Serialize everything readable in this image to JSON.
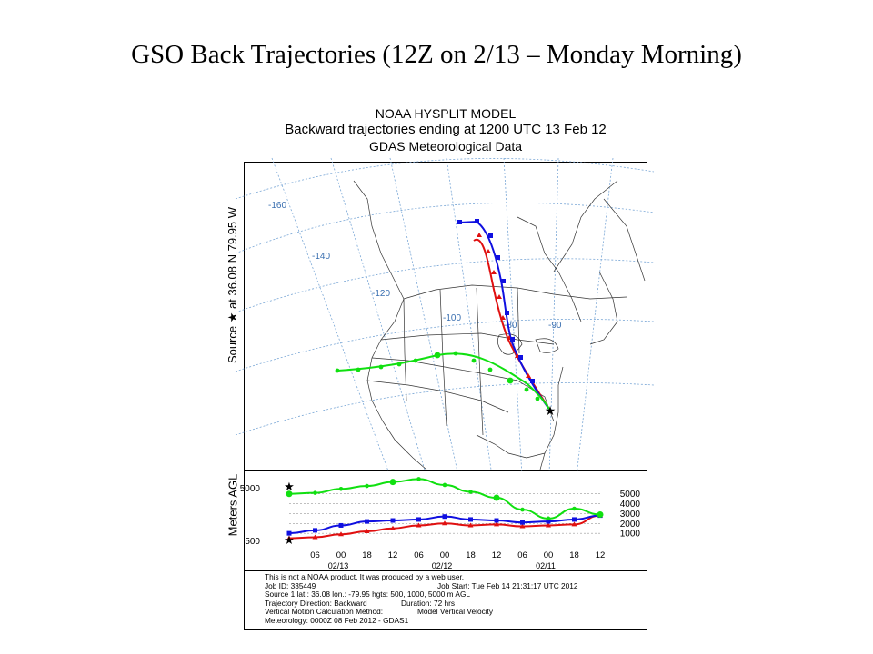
{
  "slide_title": "GSO Back Trajectories  (12Z on 2/13 – Monday Morning)",
  "header": {
    "line1": "NOAA HYSPLIT MODEL",
    "line2": "Backward trajectories ending at 1200 UTC 13 Feb 12",
    "line3": "GDAS Meteorological Data"
  },
  "source_label": "Source ★ at    36.08 N    79.95 W",
  "map": {
    "lon_labels": [
      "-160",
      "-140",
      "-120",
      "-100",
      "-80",
      "-90"
    ],
    "source_marker": "star-icon"
  },
  "colors": {
    "red": "#e01010",
    "blue": "#1010e0",
    "green": "#10e010"
  },
  "chart_data": {
    "type": "line",
    "title": "",
    "ylabel": "Meters AGL",
    "x_tick_labels": [
      "06",
      "00",
      "18",
      "12",
      "06",
      "00",
      "18",
      "12",
      "06",
      "00",
      "18",
      "12"
    ],
    "date_labels": [
      "02/13",
      "02/12",
      "02/11"
    ],
    "right_ticks": [
      "5000",
      "4000",
      "3000",
      "2000",
      "1000"
    ],
    "left_ticks": [
      "5000",
      "500"
    ],
    "x_hours_before_end": [
      0,
      6,
      12,
      18,
      24,
      30,
      36,
      42,
      48,
      54,
      60,
      66,
      72
    ],
    "series": [
      {
        "color": "#e01010",
        "values": [
          500,
          600,
          900,
          1200,
          1500,
          1800,
          2000,
          1800,
          1900,
          1700,
          1800,
          1900,
          2800
        ]
      },
      {
        "color": "#1010e0",
        "values": [
          1000,
          1300,
          1800,
          2200,
          2300,
          2400,
          2700,
          2400,
          2300,
          2100,
          2200,
          2400,
          2800
        ]
      },
      {
        "color": "#10e010",
        "values": [
          5000,
          5100,
          5500,
          5800,
          6200,
          6500,
          5900,
          5200,
          4600,
          3400,
          2500,
          3500,
          2900
        ]
      }
    ]
  },
  "info": {
    "line1": "This is not a NOAA product.  It was produced by a web user.",
    "job_id": "Job ID: 335449",
    "job_start": "Job Start: Tue Feb 14 21:31:17 UTC 2012",
    "source": "Source 1 lat.: 36.08  lon.: -79.95  hgts: 500, 1000, 5000 m AGL",
    "direction": "Trajectory Direction: Backward",
    "duration": "Duration: 72 hrs",
    "vertical": "Vertical Motion Calculation Method:",
    "vertical_value": "Model Vertical Velocity",
    "meteorology": "Meteorology: 0000Z 08 Feb 2012 - GDAS1"
  }
}
